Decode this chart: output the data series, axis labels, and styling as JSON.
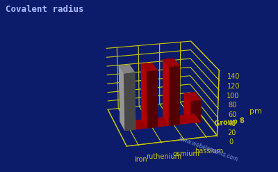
{
  "title": "Covalent radius",
  "ylabel": "pm",
  "elements": [
    "iron",
    "ruthenium",
    "osmium",
    "hassium"
  ],
  "values": [
    125,
    125,
    130,
    50
  ],
  "bar_colors": [
    "#aaaaaa",
    "#cc0000",
    "#cc0000",
    "#cc0000"
  ],
  "bar_colors_dark": [
    "#666666",
    "#880000",
    "#880000",
    "#880000"
  ],
  "background_color": "#0d1b6b",
  "grid_color": "#cccc00",
  "label_color": "#cccc00",
  "title_color": "#aabbff",
  "tick_color": "#cccc00",
  "ylim": [
    0,
    140
  ],
  "yticks": [
    0,
    20,
    40,
    60,
    80,
    100,
    120,
    140
  ],
  "watermark": "www.webelements.com",
  "group_label": "Group 8",
  "floor_color": "#aa0000"
}
